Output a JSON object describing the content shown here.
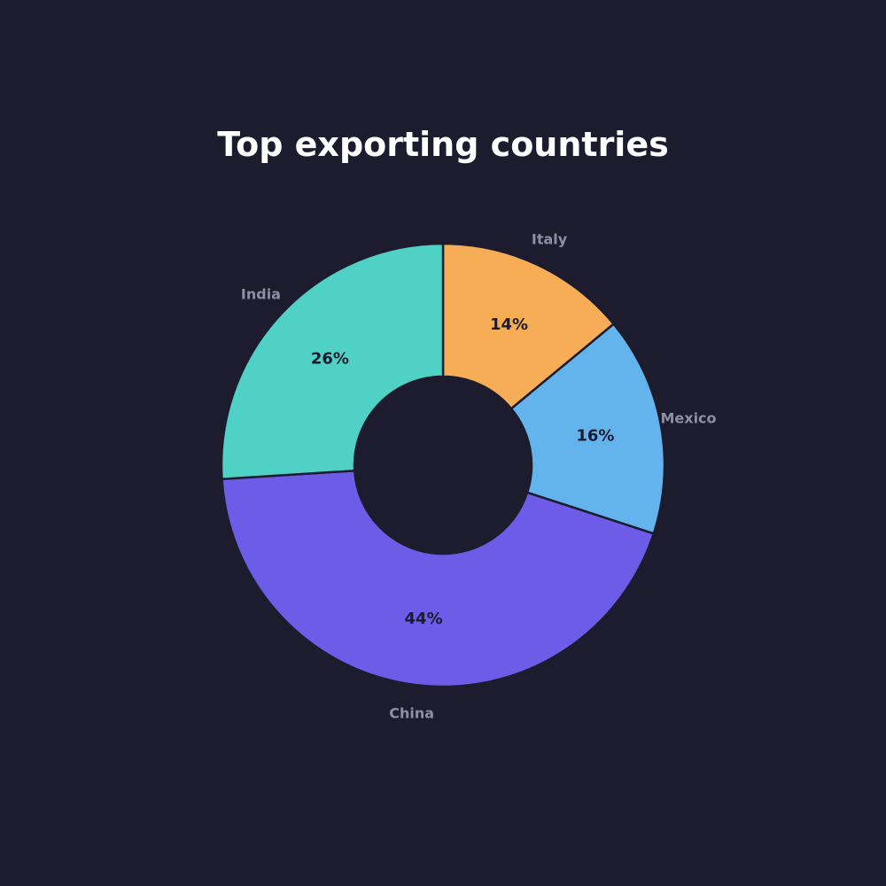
{
  "chart_data": {
    "type": "pie",
    "title": "Top exporting countries",
    "donut": true,
    "categories": [
      "Italy",
      "Mexico",
      "China",
      "India"
    ],
    "values": [
      14,
      16,
      44,
      26
    ],
    "value_labels": [
      "14%",
      "16%",
      "44%",
      "26%"
    ],
    "unit": "%",
    "colors": [
      "#f6ad55",
      "#63b3ed",
      "#6c5ce7",
      "#4fd1c5"
    ],
    "start_angle": "12 o'clock",
    "direction": "clockwise",
    "legend": "none"
  },
  "theme": {
    "background": "#1c1c2e",
    "title_color": "#ffffff",
    "category_label_color": "#8e8ea6",
    "value_label_color": "#1c1c2e",
    "slice_edge_color": "#1c1c2e"
  }
}
